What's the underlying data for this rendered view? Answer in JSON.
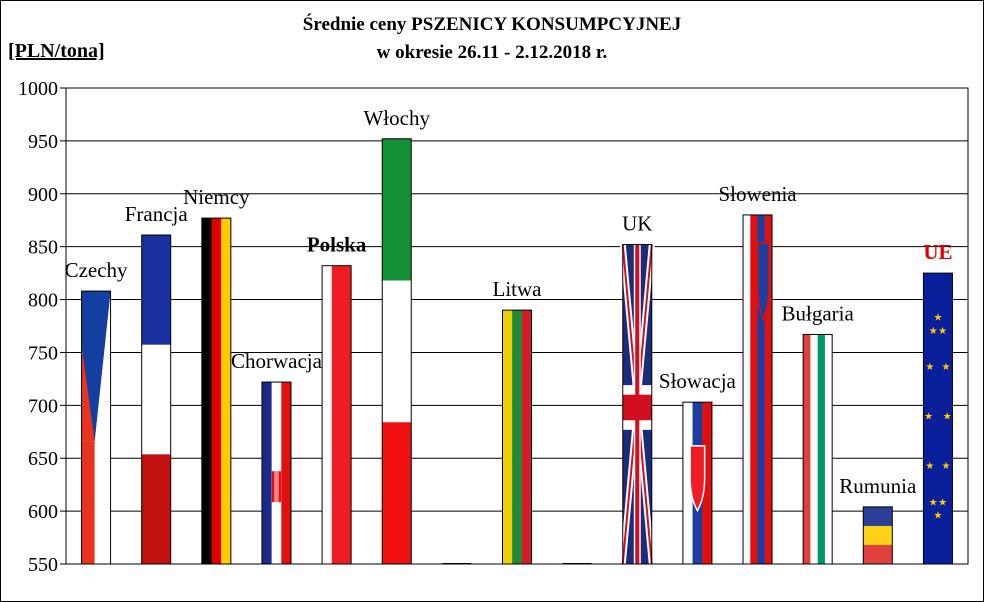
{
  "chart_data": {
    "type": "bar",
    "title_line1": "Średnie ceny PSZENICY  KONSUMPCYJNEJ",
    "title_line2": "w okresie  26.11 - 2.12.2018 r.",
    "ylabel": "[PLN/tona]",
    "xlabel": "",
    "ylim": [
      550,
      1000
    ],
    "yticks": [
      550,
      600,
      650,
      700,
      750,
      800,
      850,
      900,
      950,
      1000
    ],
    "grid": true,
    "legend": "none",
    "categories": [
      "Czechy",
      "Francja",
      "Niemcy",
      "Chorwacja",
      "Polska",
      "Włochy",
      "",
      "Litwa",
      "",
      "UK",
      "Słowacja",
      "Słowenia",
      "Bułgaria",
      "Rumunia",
      "UE"
    ],
    "values": [
      808,
      861,
      877,
      722,
      832,
      952,
      550,
      790,
      550,
      852,
      703,
      880,
      767,
      604,
      825
    ],
    "label_styles": {
      "Polska": {
        "bold": true,
        "color": "#000000"
      },
      "UE": {
        "bold": true,
        "color": "#e00000"
      }
    },
    "flags": [
      "czech-flag",
      "france-flag",
      "germany-flag",
      "croatia-flag",
      "poland-flag",
      "italy-flag",
      "",
      "lithuania-flag",
      "",
      "uk-flag",
      "slovakia-flag",
      "slovenia-flag",
      "bulgaria-flag",
      "romania-flag",
      "eu-flag"
    ]
  }
}
